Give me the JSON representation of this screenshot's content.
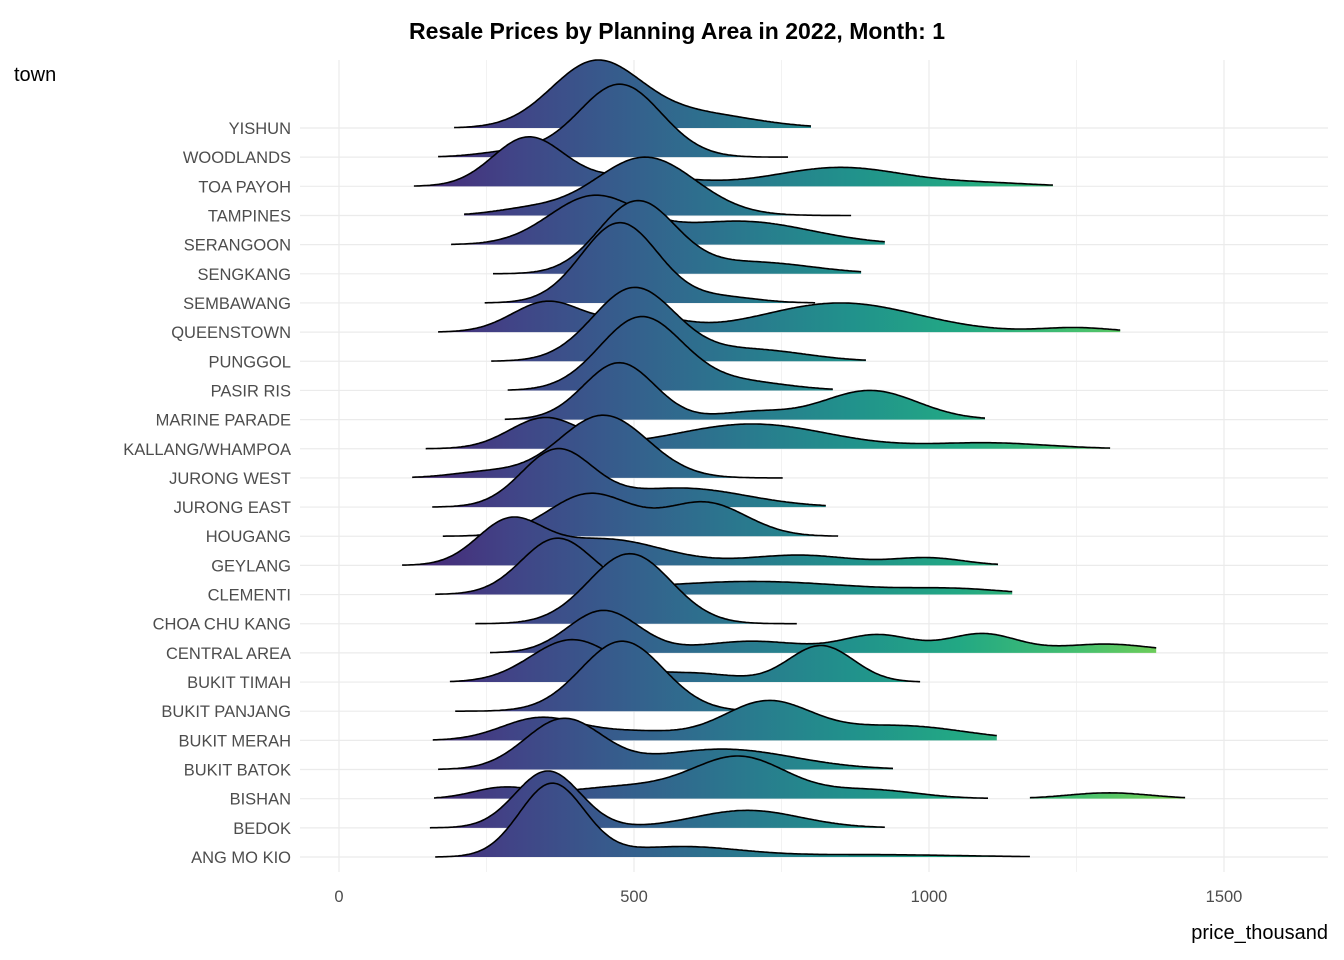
{
  "chart_data": {
    "type": "ridgeline",
    "title": "Resale Prices by Planning Area in 2022, Month: 1",
    "xlabel": "price_thousand",
    "ylabel": "town",
    "xlim": [
      0,
      1650
    ],
    "x_ticks": [
      0,
      500,
      1000,
      1500
    ],
    "x_tick_labels": [
      "0",
      "500",
      "1000",
      "1500"
    ],
    "grid": true,
    "fill_scale": "viridis by price",
    "density_height_unit": "row spacing",
    "series": [
      {
        "name": "YISHUN",
        "ranges": [
          [
            195,
            800
          ]
        ],
        "components": [
          {
            "center": 434,
            "sd": 75,
            "height": 2.2
          },
          {
            "center": 600,
            "sd": 100,
            "height": 0.5
          }
        ]
      },
      {
        "name": "WOODLANDS",
        "ranges": [
          [
            168,
            761
          ]
        ],
        "components": [
          {
            "center": 476,
            "sd": 70,
            "height": 2.5
          },
          {
            "center": 300,
            "sd": 60,
            "height": 0.2
          }
        ]
      },
      {
        "name": "TOA PAYOH",
        "ranges": [
          [
            127,
            1210
          ]
        ],
        "components": [
          {
            "center": 320,
            "sd": 60,
            "height": 1.65
          },
          {
            "center": 500,
            "sd": 90,
            "height": 0.35
          },
          {
            "center": 850,
            "sd": 110,
            "height": 0.65
          },
          {
            "center": 1100,
            "sd": 80,
            "height": 0.1
          }
        ]
      },
      {
        "name": "TAMPINES",
        "ranges": [
          [
            212,
            868
          ]
        ],
        "components": [
          {
            "center": 519,
            "sd": 85,
            "height": 2.0
          },
          {
            "center": 320,
            "sd": 60,
            "height": 0.2
          }
        ]
      },
      {
        "name": "SERANGOON",
        "ranges": [
          [
            190,
            925
          ]
        ],
        "components": [
          {
            "center": 430,
            "sd": 75,
            "height": 1.6
          },
          {
            "center": 680,
            "sd": 120,
            "height": 0.8
          }
        ]
      },
      {
        "name": "SENGKANG",
        "ranges": [
          [
            261,
            885
          ]
        ],
        "components": [
          {
            "center": 505,
            "sd": 65,
            "height": 2.45
          },
          {
            "center": 700,
            "sd": 100,
            "height": 0.4
          }
        ]
      },
      {
        "name": "SEMBAWANG",
        "ranges": [
          [
            247,
            807
          ]
        ],
        "components": [
          {
            "center": 476,
            "sd": 65,
            "height": 2.75
          },
          {
            "center": 650,
            "sd": 60,
            "height": 0.2
          }
        ]
      },
      {
        "name": "QUEENSTOWN",
        "ranges": [
          [
            168,
            1324
          ]
        ],
        "components": [
          {
            "center": 354,
            "sd": 60,
            "height": 1.05
          },
          {
            "center": 520,
            "sd": 60,
            "height": 0.5
          },
          {
            "center": 850,
            "sd": 130,
            "height": 1.0
          },
          {
            "center": 1250,
            "sd": 60,
            "height": 0.15
          }
        ]
      },
      {
        "name": "PUNGGOL",
        "ranges": [
          [
            258,
            893
          ]
        ],
        "components": [
          {
            "center": 500,
            "sd": 70,
            "height": 2.5
          },
          {
            "center": 700,
            "sd": 90,
            "height": 0.4
          }
        ]
      },
      {
        "name": "PASIR RIS",
        "ranges": [
          [
            286,
            837
          ]
        ],
        "components": [
          {
            "center": 512,
            "sd": 70,
            "height": 2.5
          },
          {
            "center": 680,
            "sd": 80,
            "height": 0.3
          }
        ]
      },
      {
        "name": "MARINE PARADE",
        "ranges": [
          [
            281,
            1095
          ]
        ],
        "components": [
          {
            "center": 475,
            "sd": 60,
            "height": 1.95
          },
          {
            "center": 700,
            "sd": 60,
            "height": 0.25
          },
          {
            "center": 900,
            "sd": 80,
            "height": 1.0
          }
        ]
      },
      {
        "name": "KALLANG/WHAMPOA",
        "ranges": [
          [
            147,
            1307
          ]
        ],
        "components": [
          {
            "center": 349,
            "sd": 60,
            "height": 1.05
          },
          {
            "center": 700,
            "sd": 130,
            "height": 0.85
          },
          {
            "center": 1100,
            "sd": 100,
            "height": 0.2
          }
        ]
      },
      {
        "name": "JURONG WEST",
        "ranges": [
          [
            124,
            752
          ]
        ],
        "components": [
          {
            "center": 448,
            "sd": 75,
            "height": 2.15
          },
          {
            "center": 250,
            "sd": 60,
            "height": 0.2
          }
        ]
      },
      {
        "name": "JURONG EAST",
        "ranges": [
          [
            158,
            825
          ]
        ],
        "components": [
          {
            "center": 369,
            "sd": 60,
            "height": 1.9
          },
          {
            "center": 580,
            "sd": 110,
            "height": 0.65
          }
        ]
      },
      {
        "name": "HOUGANG",
        "ranges": [
          [
            176,
            846
          ]
        ],
        "components": [
          {
            "center": 425,
            "sd": 70,
            "height": 1.45
          },
          {
            "center": 620,
            "sd": 70,
            "height": 1.15
          }
        ]
      },
      {
        "name": "GEYLANG",
        "ranges": [
          [
            107,
            1117
          ]
        ],
        "components": [
          {
            "center": 288,
            "sd": 55,
            "height": 1.4
          },
          {
            "center": 450,
            "sd": 100,
            "height": 0.9
          },
          {
            "center": 780,
            "sd": 90,
            "height": 0.35
          },
          {
            "center": 1000,
            "sd": 60,
            "height": 0.25
          }
        ]
      },
      {
        "name": "CLEMENTI",
        "ranges": [
          [
            163,
            1141
          ]
        ],
        "components": [
          {
            "center": 369,
            "sd": 60,
            "height": 1.85
          },
          {
            "center": 700,
            "sd": 180,
            "height": 0.45
          },
          {
            "center": 1050,
            "sd": 80,
            "height": 0.15
          }
        ]
      },
      {
        "name": "CHOA CHU KANG",
        "ranges": [
          [
            231,
            776
          ]
        ],
        "components": [
          {
            "center": 493,
            "sd": 70,
            "height": 2.4
          }
        ]
      },
      {
        "name": "CENTRAL AREA",
        "ranges": [
          [
            256,
            1385
          ]
        ],
        "components": [
          {
            "center": 448,
            "sd": 60,
            "height": 1.45
          },
          {
            "center": 700,
            "sd": 90,
            "height": 0.4
          },
          {
            "center": 914,
            "sd": 60,
            "height": 0.6
          },
          {
            "center": 1090,
            "sd": 60,
            "height": 0.65
          },
          {
            "center": 1300,
            "sd": 80,
            "height": 0.3
          }
        ]
      },
      {
        "name": "BUKIT TIMAH",
        "ranges": [
          [
            188,
            985
          ]
        ],
        "components": [
          {
            "center": 395,
            "sd": 70,
            "height": 1.45
          },
          {
            "center": 600,
            "sd": 70,
            "height": 0.3
          },
          {
            "center": 817,
            "sd": 55,
            "height": 1.25
          }
        ]
      },
      {
        "name": "BUKIT PANJANG",
        "ranges": [
          [
            197,
            780
          ]
        ],
        "components": [
          {
            "center": 480,
            "sd": 70,
            "height": 2.4
          }
        ]
      },
      {
        "name": "BUKIT MERAH",
        "ranges": [
          [
            159,
            1115
          ]
        ],
        "components": [
          {
            "center": 340,
            "sd": 65,
            "height": 0.75
          },
          {
            "center": 500,
            "sd": 80,
            "height": 0.3
          },
          {
            "center": 725,
            "sd": 75,
            "height": 1.3
          },
          {
            "center": 950,
            "sd": 110,
            "height": 0.5
          }
        ]
      },
      {
        "name": "BUKIT BATOK",
        "ranges": [
          [
            168,
            939
          ]
        ],
        "components": [
          {
            "center": 380,
            "sd": 65,
            "height": 1.7
          },
          {
            "center": 650,
            "sd": 120,
            "height": 0.7
          }
        ]
      },
      {
        "name": "BISHAN",
        "ranges": [
          [
            161,
            1100
          ],
          [
            1171,
            1434
          ]
        ],
        "components": [
          {
            "center": 276,
            "sd": 50,
            "height": 0.35
          },
          {
            "center": 480,
            "sd": 100,
            "height": 0.4
          },
          {
            "center": 680,
            "sd": 80,
            "height": 1.4
          },
          {
            "center": 900,
            "sd": 80,
            "height": 0.3
          },
          {
            "center": 1305,
            "sd": 70,
            "height": 0.2
          }
        ]
      },
      {
        "name": "BEDOK",
        "ranges": [
          [
            154,
            925
          ]
        ],
        "components": [
          {
            "center": 354,
            "sd": 55,
            "height": 1.95
          },
          {
            "center": 692,
            "sd": 90,
            "height": 0.6
          }
        ]
      },
      {
        "name": "ANG MO KIO",
        "ranges": [
          [
            163,
            1171
          ]
        ],
        "components": [
          {
            "center": 361,
            "sd": 55,
            "height": 2.5
          },
          {
            "center": 580,
            "sd": 100,
            "height": 0.35
          },
          {
            "center": 900,
            "sd": 150,
            "height": 0.08
          }
        ]
      }
    ]
  },
  "colors": {
    "grid_major": "#ebebeb",
    "grid_minor": "#f2f2f2",
    "outline": "#000000",
    "viridis_low": "#482475",
    "viridis_high": "#7ad151"
  }
}
